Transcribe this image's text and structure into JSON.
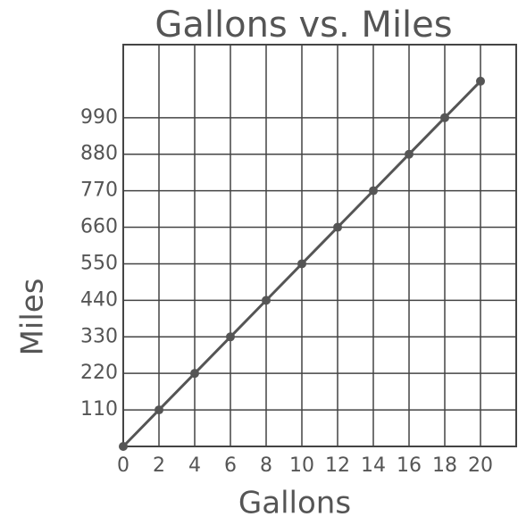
{
  "chart_data": {
    "type": "line",
    "title": "Gallons vs. Miles",
    "x_label": "Gallons",
    "y_label": "Miles",
    "x": [
      0,
      2,
      4,
      6,
      8,
      10,
      12,
      14,
      16,
      18,
      20
    ],
    "series": [
      {
        "name": "Miles",
        "color": "#555555",
        "values": [
          0,
          110,
          220,
          330,
          440,
          550,
          660,
          770,
          880,
          990,
          1100
        ]
      }
    ],
    "xlim": [
      0,
      22
    ],
    "xticks": [
      0,
      2,
      4,
      6,
      8,
      10,
      12,
      14,
      16,
      18,
      20
    ],
    "ylim": [
      0,
      1210
    ],
    "yticks": [
      110,
      220,
      330,
      440,
      550,
      660,
      770,
      880,
      990
    ],
    "grid": true
  }
}
